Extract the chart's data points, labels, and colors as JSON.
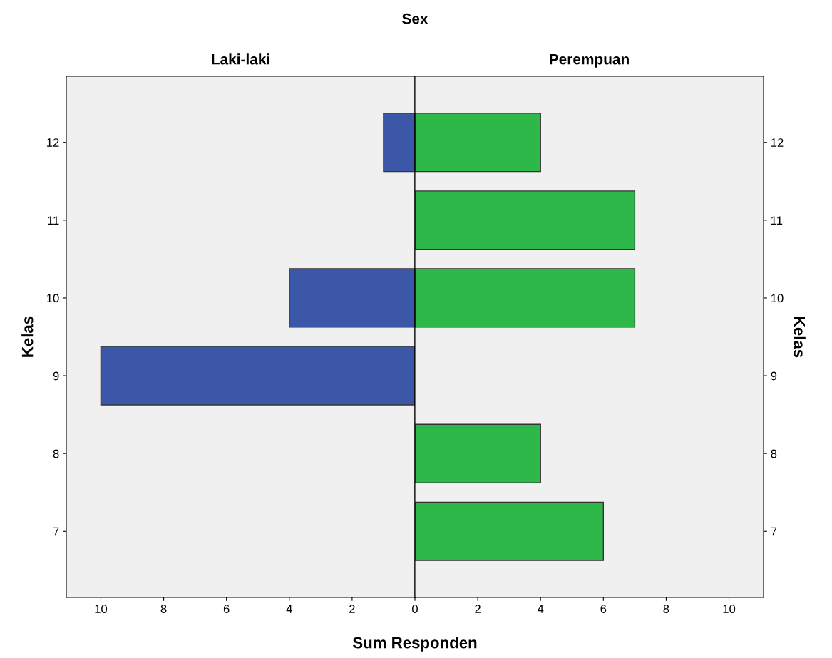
{
  "chart_data": [
    {
      "type": "bar",
      "orientation": "horizontal",
      "title": "Laki-laki",
      "ylabel": "Kelas",
      "xlabel": "Sum Responden",
      "annotations": [
        "Sex"
      ],
      "categories": [
        "12",
        "11",
        "10",
        "9",
        "8",
        "7"
      ],
      "series": [
        {
          "color": "#3c56a8",
          "values": [
            1,
            null,
            4,
            10,
            null,
            null
          ]
        }
      ],
      "xlim": [
        11.1,
        0
      ],
      "xticks": [
        10,
        8,
        6,
        4,
        2,
        0
      ],
      "grid": false
    },
    {
      "type": "bar",
      "orientation": "horizontal",
      "title": "Perempuan",
      "ylabel": "Kelas",
      "categories": [
        "12",
        "11",
        "10",
        "9",
        "8",
        "7"
      ],
      "series": [
        {
          "color": "#2eb84a",
          "values": [
            4,
            7,
            7,
            null,
            4,
            6
          ]
        }
      ],
      "xlim": [
        0,
        11.1
      ],
      "xticks": [
        2,
        4,
        6,
        8,
        10
      ],
      "grid": false
    }
  ]
}
